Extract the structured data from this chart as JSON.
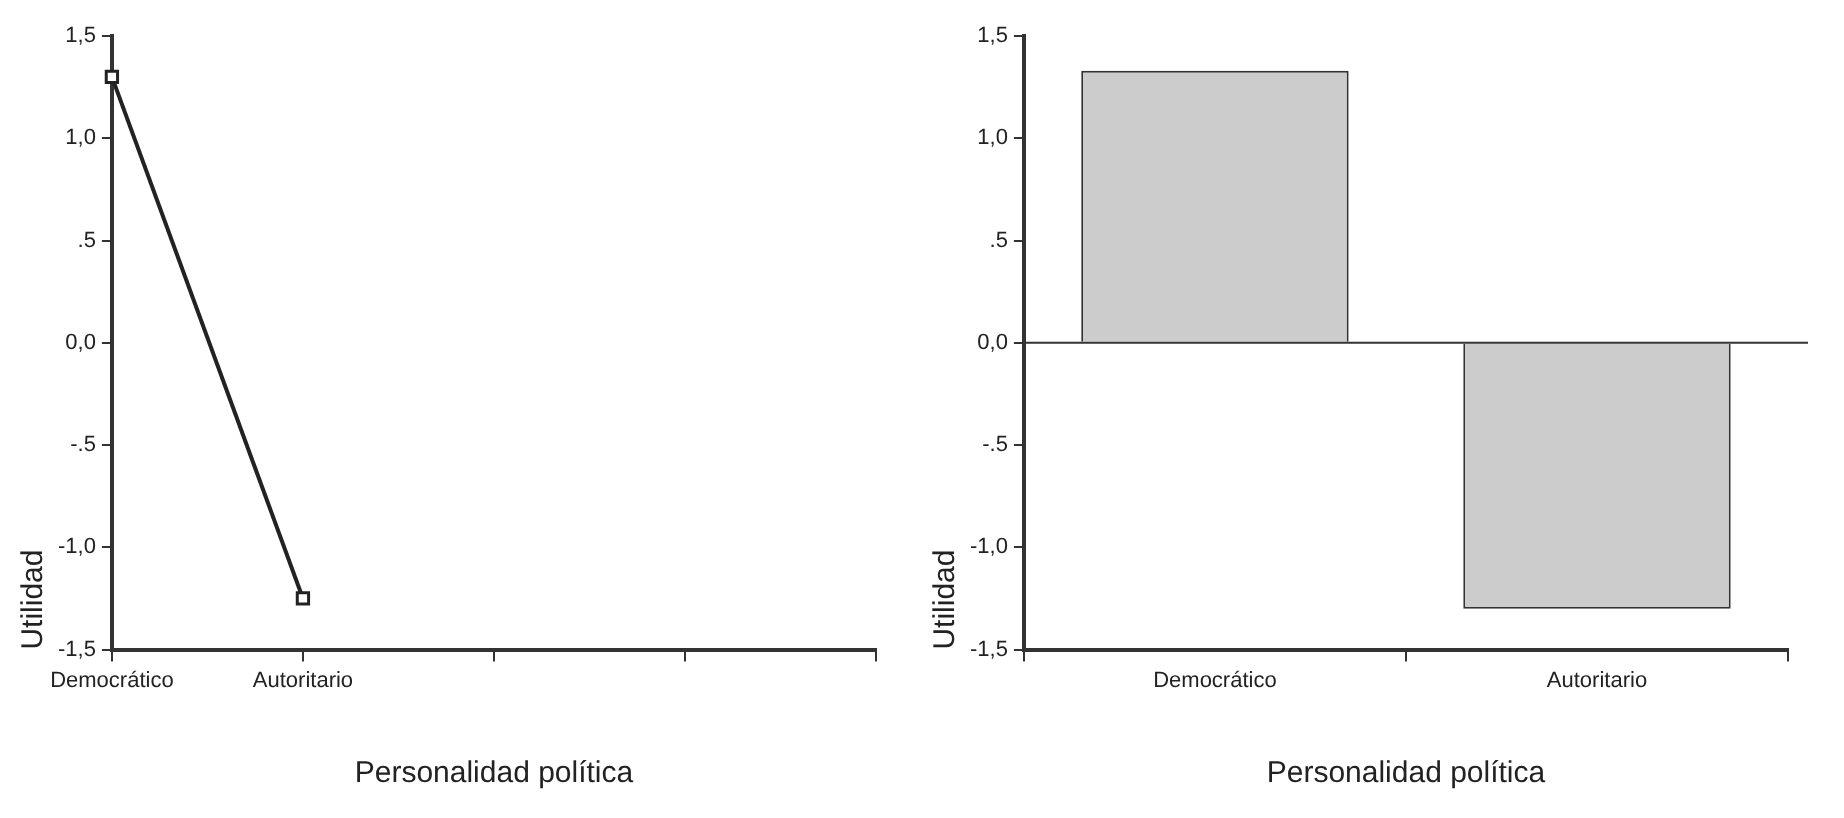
{
  "chart_data": [
    {
      "type": "line",
      "xlabel": "Personalidad política",
      "ylabel": "Utilidad",
      "categories": [
        "Democrático",
        "Autoritario",
        null,
        null,
        null
      ],
      "series": [
        {
          "color": "#222222",
          "values": [
            1.3,
            -1.25,
            null,
            null,
            null
          ]
        }
      ],
      "ylim": [
        -1.5,
        1.5
      ],
      "yticks": [
        {
          "value": -1.5,
          "label": "-1,5"
        },
        {
          "value": -1,
          "label": "-1,0"
        },
        {
          "value": -0.5,
          "label": "-.5"
        },
        {
          "value": 0,
          "label": "0,0"
        },
        {
          "value": 0.5,
          "label": ".5"
        },
        {
          "value": 1,
          "label": "1,0"
        },
        {
          "value": 1.5,
          "label": "1,5"
        }
      ],
      "marker": "square",
      "grid": false,
      "legend": false
    },
    {
      "type": "bar",
      "xlabel": "Personalidad política",
      "ylabel": "Utilidad",
      "categories": [
        "Democrático",
        "Autoritario"
      ],
      "series": [
        {
          "color": "#cccccc",
          "values": [
            1.33,
            -1.3
          ]
        }
      ],
      "ylim": [
        -1.5,
        1.5
      ],
      "yticks": [
        {
          "value": -1.5,
          "label": "-1,5"
        },
        {
          "value": -1,
          "label": "-1,0"
        },
        {
          "value": -0.5,
          "label": "-.5"
        },
        {
          "value": 0,
          "label": "0,0"
        },
        {
          "value": 0.5,
          "label": ".5"
        },
        {
          "value": 1,
          "label": "1,0"
        },
        {
          "value": 1.5,
          "label": "1,5"
        }
      ],
      "ref_lines": [
        {
          "axis": "y",
          "value": 0,
          "color": "#333333"
        }
      ],
      "grid": false,
      "legend": false
    }
  ]
}
